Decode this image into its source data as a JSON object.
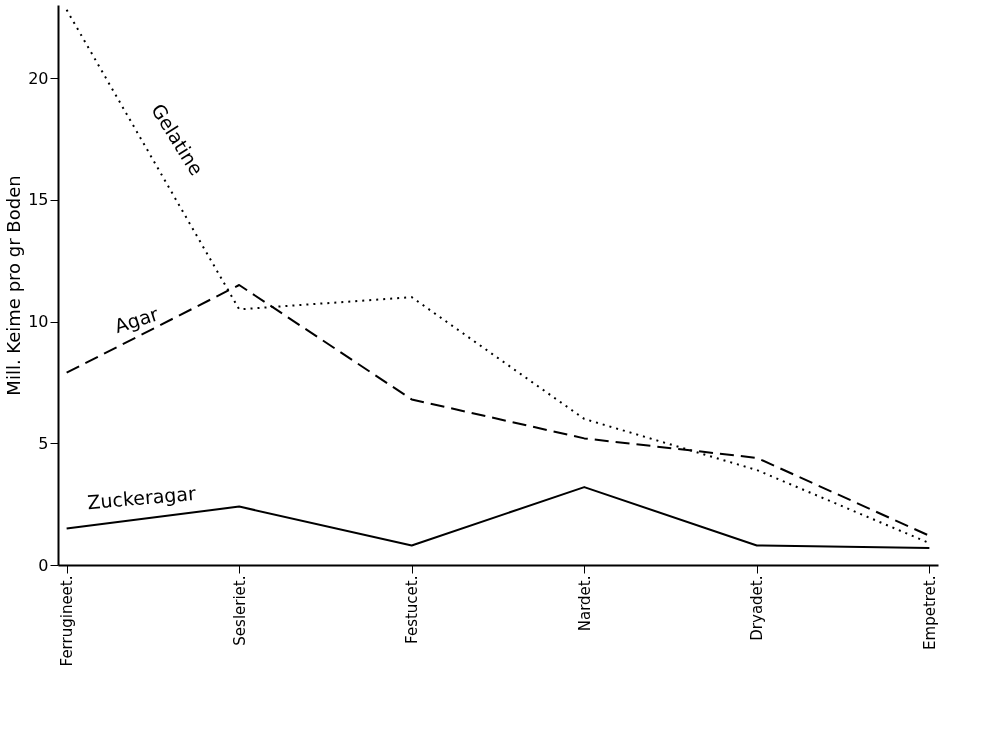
{
  "chart_data": {
    "type": "line",
    "ylabel": "Mill. Keime pro gr Boden",
    "categories": [
      "Ferrugineet.",
      "Sesleriet.",
      "Festucet.",
      "Nardet.",
      "Dryadet.",
      "Empetret."
    ],
    "series": [
      {
        "name": "Gelatine",
        "color": "#000000",
        "line_style": "dotted",
        "values": [
          22.8,
          10.5,
          11.0,
          6.0,
          3.9,
          0.9
        ]
      },
      {
        "name": "Agar",
        "color": "#000000",
        "line_style": "dashed",
        "values": [
          7.9,
          11.5,
          6.8,
          5.2,
          4.4,
          1.2
        ]
      },
      {
        "name": "Zuckeragar",
        "color": "#000000",
        "line_style": "solid",
        "values": [
          1.5,
          2.4,
          0.8,
          3.2,
          0.8,
          0.7
        ]
      }
    ],
    "ylim": [
      0,
      23
    ],
    "yticks": [
      0,
      5,
      10,
      15,
      20
    ],
    "grid": false,
    "legend": false,
    "marker": "none"
  }
}
